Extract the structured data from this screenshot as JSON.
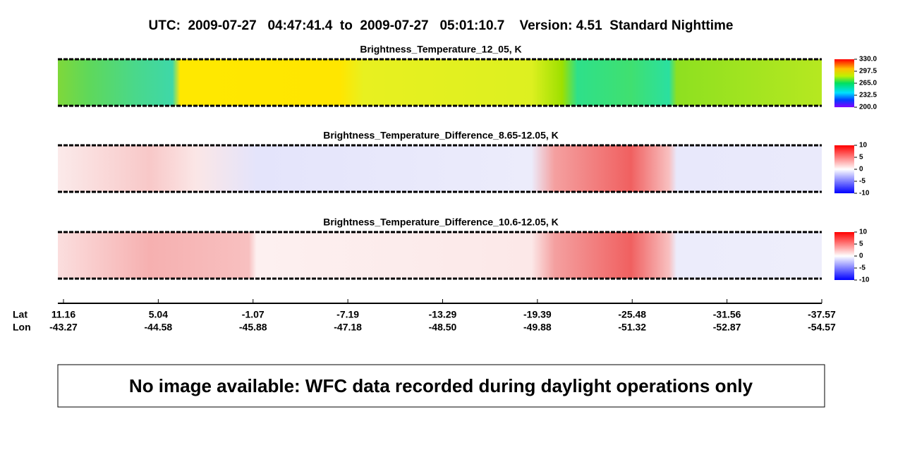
{
  "header": {
    "title": "UTC:  2009-07-27   04:47:41.4  to  2009-07-27   05:01:10.7    Version: 4.51  Standard Nighttime"
  },
  "panels": [
    {
      "title": "Brightness_Temperature_12_05, K",
      "colorbar": {
        "range": [
          200,
          330
        ],
        "ticks": [
          {
            "value": 330,
            "label": "330.0"
          },
          297.5,
          {
            "value": 265,
            "label": "265.0"
          },
          232.5,
          {
            "value": 200,
            "label": "200.0"
          }
        ]
      }
    },
    {
      "title": "Brightness_Temperature_Difference_8.65-12.05, K",
      "colorbar": {
        "range": [
          -10,
          10
        ],
        "ticks": [
          10,
          5,
          0,
          -5,
          -10
        ]
      }
    },
    {
      "title": "Brightness_Temperature_Difference_10.6-12.05, K",
      "colorbar": {
        "range": [
          -10,
          10
        ],
        "ticks": [
          10,
          5,
          0,
          -5,
          -10
        ]
      }
    }
  ],
  "axis": {
    "lat_label": "Lat",
    "lon_label": "Lon",
    "lat": [
      "11.16",
      "5.04",
      "-1.07",
      "-7.19",
      "-13.29",
      "-19.39",
      "-25.48",
      "-31.56",
      "-37.57"
    ],
    "lon": [
      "-43.27",
      "-44.58",
      "-45.88",
      "-47.18",
      "-48.50",
      "-49.88",
      "-51.32",
      "-52.87",
      "-54.57"
    ]
  },
  "message": "No image available: WFC data recorded during daylight operations only"
}
